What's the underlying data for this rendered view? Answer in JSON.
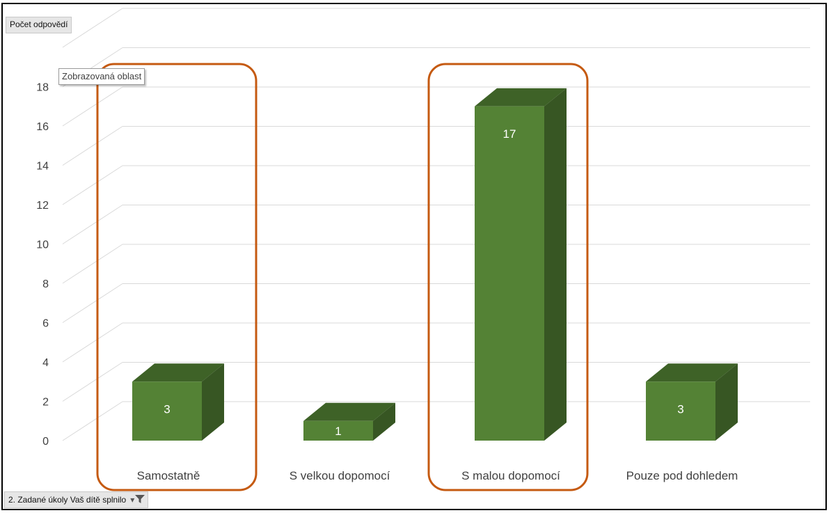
{
  "chart_data": {
    "type": "bar",
    "title": "",
    "xlabel": "",
    "ylabel": "",
    "categories": [
      "Samostatně",
      "S velkou dopomocí",
      "S malou dopomocí",
      "Pouze pod dohledem"
    ],
    "values": [
      3,
      1,
      17,
      3
    ],
    "data_labels": [
      "3",
      "1",
      "17",
      "3"
    ],
    "ylim": [
      0,
      18
    ],
    "yticks": [
      "0",
      "2",
      "4",
      "6",
      "8",
      "10",
      "12",
      "14",
      "16",
      "18"
    ],
    "grid": true,
    "three_d": true,
    "bar_color": "#548235",
    "bar_top_color": "#3e6227",
    "bar_side_color": "#375623",
    "highlight_color": "#c55a11",
    "highlighted_categories": [
      "Samostatně",
      "S malou dopomocí"
    ]
  },
  "pivot": {
    "values_field": "Počet odpovědí",
    "axis_field": "2. Zadané úkoly Vaš dítě splnilo",
    "tooltip": "Zobrazovaná oblast"
  }
}
